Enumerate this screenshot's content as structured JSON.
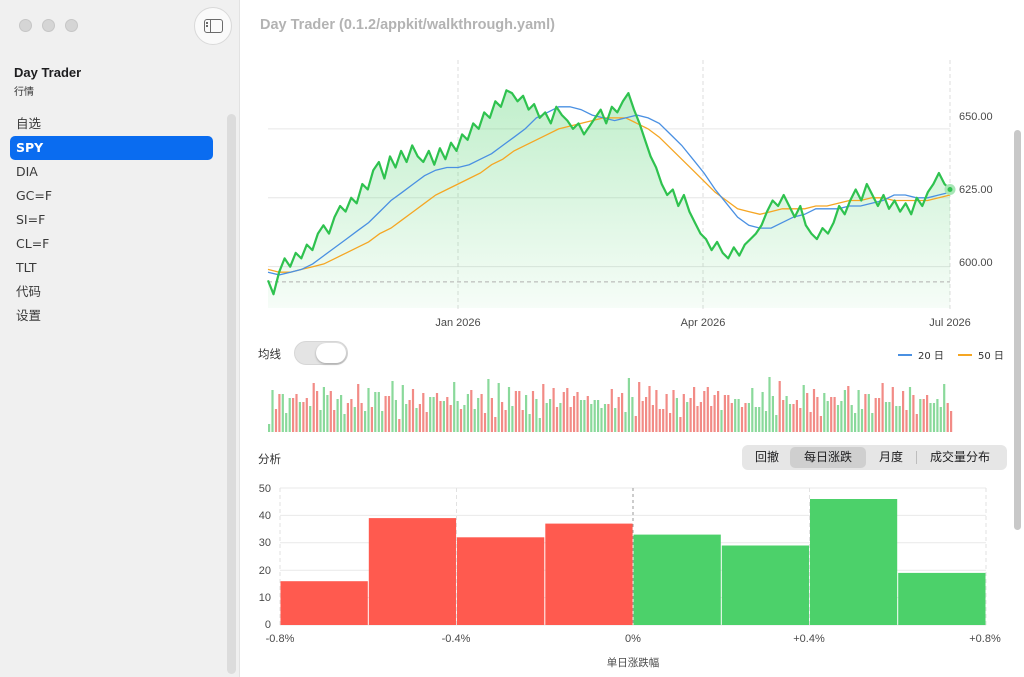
{
  "window": {
    "title": "Day Trader (0.1.2/appkit/walkthrough.yaml)"
  },
  "sidebar": {
    "app_title": "Day Trader",
    "app_subtitle": "行情",
    "items": [
      {
        "label": "自选",
        "selected": false
      },
      {
        "label": "SPY",
        "selected": true
      },
      {
        "label": "DIA",
        "selected": false
      },
      {
        "label": "GC=F",
        "selected": false
      },
      {
        "label": "SI=F",
        "selected": false
      },
      {
        "label": "CL=F",
        "selected": false
      },
      {
        "label": "TLT",
        "selected": false
      },
      {
        "label": "代码",
        "selected": false
      },
      {
        "label": "设置",
        "selected": false
      }
    ]
  },
  "controls": {
    "ma_label": "均线",
    "ma_toggle_on": false,
    "legend": [
      {
        "label": "20 日",
        "color": "#4a90e2"
      },
      {
        "label": "50 日",
        "color": "#f5a623"
      }
    ],
    "analysis_label": "分析",
    "segments": [
      "回撤",
      "每日涨跌",
      "月度",
      "成交量分布"
    ],
    "selected_segment": 1
  },
  "colors": {
    "accent": "#0a6cf0",
    "up": "#4cd16a",
    "down": "#ff5a4f",
    "price_line": "#2fc24f"
  },
  "chart_data": [
    {
      "type": "line",
      "x_tick_labels": [
        "Jan 2026",
        "Apr 2026",
        "Jul 2026"
      ],
      "y_tick_labels": [
        "600.00",
        "625.00",
        "650.00"
      ],
      "ylim": [
        585,
        675
      ],
      "reference_line": 594.5,
      "series": [
        {
          "role": "price",
          "values": [
            595,
            590,
            598,
            603,
            600,
            605,
            603,
            608,
            606,
            612,
            615,
            612,
            618,
            622,
            620,
            625,
            623,
            630,
            628,
            635,
            638,
            632,
            640,
            636,
            642,
            638,
            644,
            640,
            638,
            642,
            637,
            643,
            639,
            645,
            642,
            648,
            646,
            652,
            650,
            656,
            654,
            660,
            658,
            664,
            663,
            660,
            662,
            657,
            659,
            654,
            656,
            652,
            658,
            655,
            653,
            650,
            652,
            648,
            651,
            654,
            657,
            652,
            658,
            656,
            660,
            663,
            657,
            652,
            646,
            640,
            636,
            630,
            626,
            628,
            622,
            626,
            620,
            616,
            612,
            610,
            606,
            609,
            605,
            603,
            607,
            604,
            608,
            610,
            612,
            615,
            620,
            624,
            622,
            626,
            622,
            618,
            622,
            615,
            612,
            610,
            614,
            612,
            616,
            622,
            619,
            624,
            628,
            624,
            630,
            626,
            622,
            626,
            621,
            624,
            620,
            623,
            619,
            625,
            622,
            627,
            630,
            634,
            630,
            628
          ]
        },
        {
          "role": "ma20",
          "name": "20 日",
          "values": [
            598,
            597,
            598,
            599,
            601,
            604,
            607,
            610,
            613,
            616,
            620,
            624,
            627,
            630,
            633,
            635,
            636,
            636,
            637,
            639,
            641,
            644,
            647,
            650,
            654,
            656,
            658,
            658,
            657,
            655,
            654,
            653,
            654,
            655,
            654,
            652,
            648,
            644,
            639,
            634,
            628,
            623,
            618,
            615,
            614,
            614,
            616,
            618,
            619,
            621,
            621,
            621,
            622,
            622,
            623,
            624,
            626,
            626,
            625,
            625,
            626,
            627
          ]
        },
        {
          "role": "ma50",
          "name": "50 日",
          "values": [
            599,
            598,
            598,
            599,
            600,
            601,
            603,
            605,
            607,
            609,
            612,
            614,
            617,
            620,
            623,
            626,
            628,
            630,
            632,
            634,
            637,
            639,
            642,
            644,
            646,
            648,
            650,
            651,
            652,
            653,
            654,
            654,
            654,
            652,
            650,
            647,
            643,
            639,
            635,
            631,
            627,
            624,
            621,
            620,
            619,
            620,
            621,
            621,
            621,
            622,
            622,
            623,
            624,
            624,
            625,
            625,
            624,
            624,
            624,
            624,
            625,
            626
          ]
        }
      ]
    },
    {
      "type": "histogram",
      "title": "每日涨跌",
      "xlabel": "单日涨跌幅",
      "x_tick_labels": [
        "-0.8%",
        "-0.4%",
        "0%",
        "+0.4%",
        "+0.8%"
      ],
      "y_tick_labels": [
        "0",
        "10",
        "20",
        "30",
        "40",
        "50"
      ],
      "ylim": [
        0,
        50
      ],
      "bins": [
        -0.8,
        -0.6,
        -0.4,
        -0.2,
        0,
        0.2,
        0.4,
        0.6,
        0.8
      ],
      "values": [
        16,
        39,
        32,
        37,
        33,
        29,
        46,
        19
      ]
    }
  ]
}
